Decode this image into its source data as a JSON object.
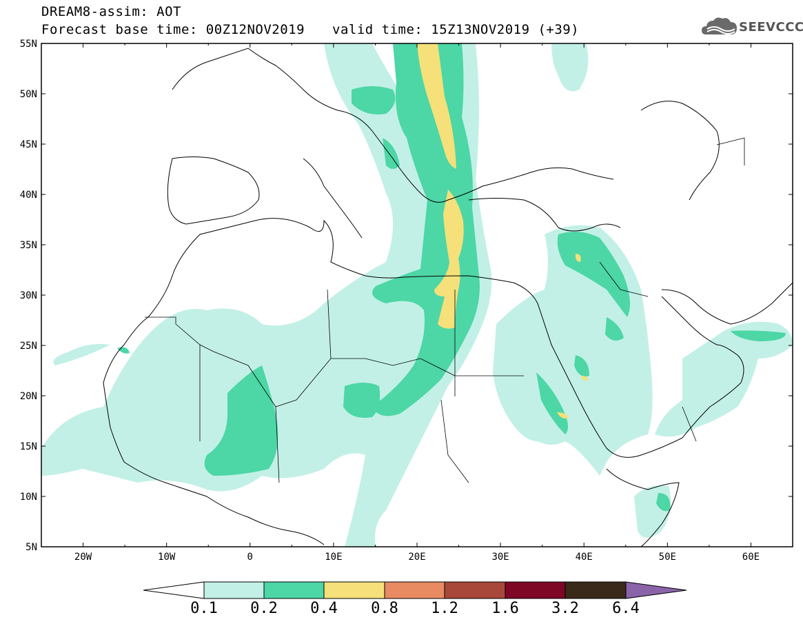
{
  "header": {
    "title": "DREAM8-assim: AOT",
    "base_time": "Forecast base time: 00Z12NOV2019",
    "valid_time": "valid time: 15Z13NOV2019 (+39)"
  },
  "logo": {
    "text": "SEEVCCC",
    "icon": "cloud-icon"
  },
  "axes": {
    "lat_ticks": [
      "55N",
      "50N",
      "45N",
      "40N",
      "35N",
      "30N",
      "25N",
      "20N",
      "15N",
      "10N",
      "5N"
    ],
    "lon_ticks": [
      "20W",
      "10W",
      "0",
      "10E",
      "20E",
      "30E",
      "40E",
      "50E",
      "60E"
    ]
  },
  "colorbar": {
    "levels": [
      "0.1",
      "0.2",
      "0.4",
      "0.8",
      "1.2",
      "1.6",
      "3.2",
      "6.4"
    ],
    "colors": [
      "#ffffff",
      "#c2f0e6",
      "#4dd6a6",
      "#f5e07a",
      "#e88a62",
      "#a8483a",
      "#7e0726",
      "#3a2a1a",
      "#8a63a8"
    ]
  },
  "map_data": {
    "domain": {
      "lon": [
        -25,
        65
      ],
      "lat": [
        5,
        55
      ]
    },
    "plumes": [
      {
        "level": "0.1-0.2",
        "description_points": [
          [
            -24,
            12
          ],
          [
            -10,
            18
          ],
          [
            0,
            24
          ],
          [
            10,
            30
          ],
          [
            20,
            32
          ],
          [
            25,
            36
          ],
          [
            27,
            42
          ],
          [
            28,
            55
          ],
          [
            22,
            55
          ],
          [
            20,
            45
          ],
          [
            14,
            38
          ],
          [
            8,
            30
          ],
          [
            -2,
            26
          ],
          [
            -15,
            17
          ],
          [
            -24,
            14
          ]
        ]
      }
    ]
  }
}
